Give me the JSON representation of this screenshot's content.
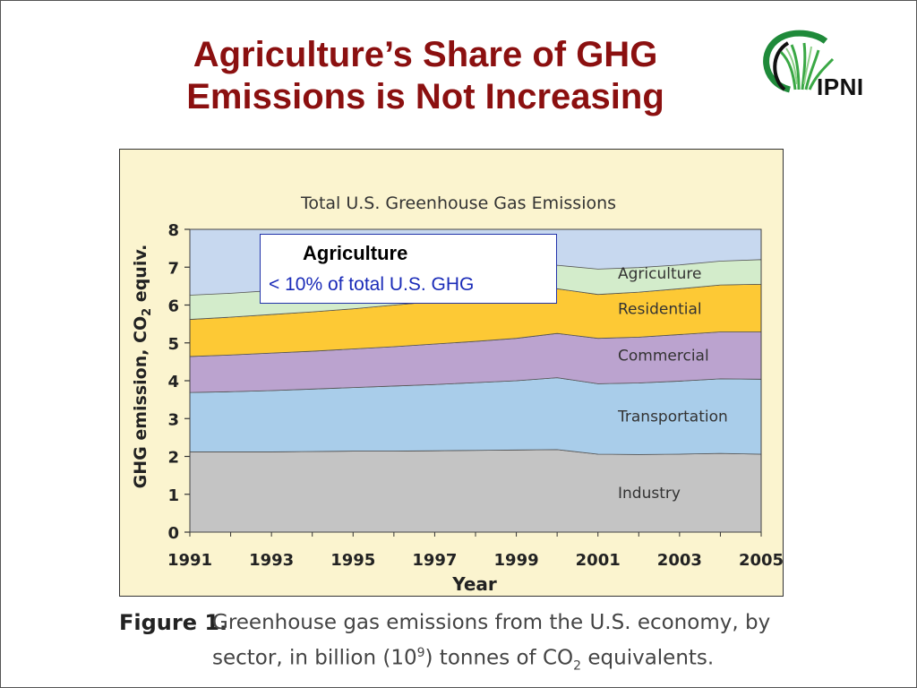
{
  "slide": {
    "title_line1": "Agriculture’s Share of GHG",
    "title_line2": "Emissions is Not Increasing",
    "logo_text": "IPNI"
  },
  "callout": {
    "title": "Agriculture",
    "text": "< 10% of total U.S. GHG"
  },
  "caption": {
    "figure_label": "Figure 1.",
    "line1": "Greenhouse gas emissions from the U.S. economy, by",
    "line2_pre": "sector, in billion (10",
    "line2_sup": "9",
    "line2_mid": ") tonnes of CO",
    "line2_sub": "2",
    "line2_post": " equivalents."
  },
  "colors": {
    "industry": "#c4c4c4",
    "transportation": "#a9cdea",
    "commercial": "#bba3cf",
    "residential": "#fdc935",
    "agriculture": "#d3eccb",
    "top": "#c7d8ef",
    "title_red": "#8b1010",
    "callout_blue": "#1a2bb8",
    "panel_bg": "#fbf4cf"
  },
  "chart_data": {
    "type": "area",
    "stacked": true,
    "title": "Total U.S. Greenhouse Gas Emissions",
    "xlabel": "Year",
    "ylabel_pre": "GHG emission, CO",
    "ylabel_sub": "2",
    "ylabel_post": " equiv.",
    "xlim": [
      1991,
      2005
    ],
    "ylim": [
      0,
      8
    ],
    "x_ticks": [
      1991,
      1993,
      1995,
      1997,
      1999,
      2001,
      2003,
      2005
    ],
    "y_ticks": [
      0,
      1,
      2,
      3,
      4,
      5,
      6,
      7,
      8
    ],
    "x": [
      1991,
      1992,
      1993,
      1994,
      1995,
      1996,
      1997,
      1998,
      1999,
      2000,
      2001,
      2002,
      2003,
      2004,
      2005
    ],
    "series": [
      {
        "name": "Industry",
        "values": [
          2.12,
          2.12,
          2.12,
          2.13,
          2.14,
          2.14,
          2.15,
          2.16,
          2.17,
          2.18,
          2.06,
          2.05,
          2.06,
          2.08,
          2.06
        ]
      },
      {
        "name": "Transportation",
        "values": [
          1.57,
          1.59,
          1.62,
          1.65,
          1.68,
          1.72,
          1.75,
          1.79,
          1.83,
          1.9,
          1.86,
          1.89,
          1.93,
          1.97,
          1.98
        ]
      },
      {
        "name": "Commercial",
        "values": [
          0.95,
          0.97,
          0.99,
          1.0,
          1.02,
          1.04,
          1.07,
          1.09,
          1.12,
          1.17,
          1.2,
          1.21,
          1.23,
          1.24,
          1.25
        ]
      },
      {
        "name": "Residential",
        "values": [
          0.98,
          1.0,
          1.02,
          1.04,
          1.06,
          1.1,
          1.12,
          1.13,
          1.14,
          1.18,
          1.16,
          1.19,
          1.21,
          1.24,
          1.26
        ]
      },
      {
        "name": "Agriculture",
        "values": [
          0.64,
          0.63,
          0.63,
          0.63,
          0.63,
          0.64,
          0.63,
          0.62,
          0.62,
          0.62,
          0.67,
          0.65,
          0.63,
          0.63,
          0.65
        ]
      }
    ],
    "total_top": 8
  }
}
